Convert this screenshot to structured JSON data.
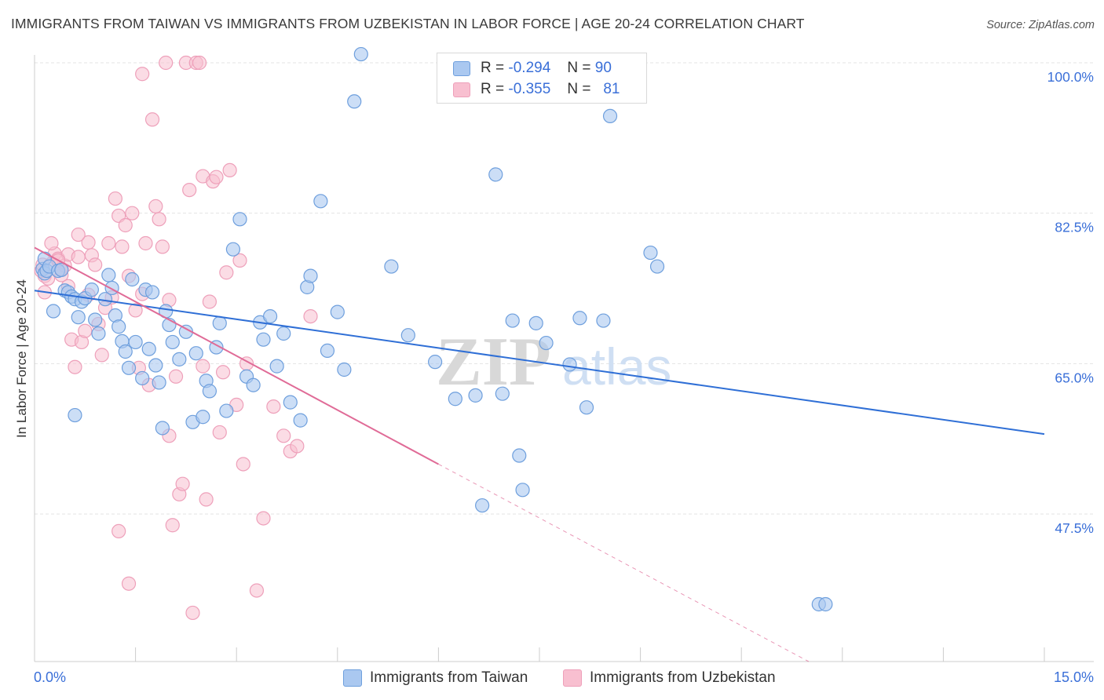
{
  "title": "IMMIGRANTS FROM TAIWAN VS IMMIGRANTS FROM UZBEKISTAN IN LABOR FORCE | AGE 20-24 CORRELATION CHART",
  "source": "Source: ZipAtlas.com",
  "watermark": {
    "zip": "ZIP",
    "atlas": "atlas"
  },
  "legend": {
    "taiwan": {
      "r_label": "R =",
      "r_value": "-0.294",
      "n_label": "N =",
      "n_value": "90"
    },
    "uzbekistan": {
      "r_label": "R =",
      "r_value": "-0.355",
      "n_label": "N =",
      "n_value": "81"
    }
  },
  "colors": {
    "taiwan_fill": "#aac8f0",
    "taiwan_stroke": "#6e9fdd",
    "taiwan_line": "#2f6fd6",
    "uzbek_fill": "#f8bfd0",
    "uzbek_stroke": "#eea0ba",
    "uzbek_line": "#e06b97",
    "axis_text": "#3a6fd8",
    "grid": "#e3e3e3"
  },
  "chart_data": {
    "type": "scatter",
    "title": "IMMIGRANTS FROM TAIWAN VS IMMIGRANTS FROM UZBEKISTAN IN LABOR FORCE | AGE 20-24 CORRELATION CHART",
    "xlabel": "",
    "ylabel": "In Labor Force | Age 20-24",
    "xlim": [
      0,
      15
    ],
    "ylim": [
      32.5,
      102
    ],
    "x_tick_labels": [
      "0.0%",
      "15.0%"
    ],
    "y_ticks": [
      47.5,
      65.0,
      82.5,
      100.0
    ],
    "y_tick_labels": [
      "47.5%",
      "65.0%",
      "82.5%",
      "100.0%"
    ],
    "grid": true,
    "legend_placement": "top-center",
    "series": [
      {
        "name": "Immigrants from Taiwan",
        "key": "taiwan",
        "points": [
          [
            0.12,
            76.0
          ],
          [
            0.15,
            77.2
          ],
          [
            0.15,
            75.5
          ],
          [
            0.18,
            75.8
          ],
          [
            0.22,
            76.3
          ],
          [
            0.28,
            71.1
          ],
          [
            0.35,
            75.8
          ],
          [
            0.4,
            75.9
          ],
          [
            0.45,
            73.5
          ],
          [
            0.5,
            73.3
          ],
          [
            0.55,
            72.8
          ],
          [
            0.6,
            72.5
          ],
          [
            0.65,
            70.4
          ],
          [
            0.7,
            72.2
          ],
          [
            0.75,
            72.6
          ],
          [
            0.85,
            73.6
          ],
          [
            0.9,
            70.1
          ],
          [
            0.95,
            68.5
          ],
          [
            1.05,
            72.5
          ],
          [
            1.1,
            75.3
          ],
          [
            1.15,
            73.8
          ],
          [
            1.2,
            70.6
          ],
          [
            1.25,
            69.3
          ],
          [
            1.3,
            67.6
          ],
          [
            1.35,
            66.4
          ],
          [
            1.4,
            64.5
          ],
          [
            1.45,
            74.8
          ],
          [
            1.5,
            67.5
          ],
          [
            1.6,
            63.3
          ],
          [
            1.65,
            73.6
          ],
          [
            1.7,
            66.7
          ],
          [
            1.75,
            73.3
          ],
          [
            1.8,
            64.8
          ],
          [
            1.85,
            62.8
          ],
          [
            1.9,
            57.5
          ],
          [
            1.95,
            71.1
          ],
          [
            2.0,
            69.5
          ],
          [
            2.05,
            67.5
          ],
          [
            2.15,
            65.5
          ],
          [
            2.25,
            68.7
          ],
          [
            2.35,
            58.2
          ],
          [
            2.4,
            66.2
          ],
          [
            2.5,
            58.8
          ],
          [
            2.55,
            63.0
          ],
          [
            2.6,
            61.8
          ],
          [
            2.7,
            66.9
          ],
          [
            2.75,
            69.7
          ],
          [
            2.85,
            59.5
          ],
          [
            2.95,
            78.3
          ],
          [
            3.05,
            81.8
          ],
          [
            3.15,
            63.5
          ],
          [
            3.25,
            62.5
          ],
          [
            3.35,
            69.8
          ],
          [
            3.4,
            67.8
          ],
          [
            3.5,
            70.5
          ],
          [
            3.6,
            64.7
          ],
          [
            3.7,
            68.5
          ],
          [
            3.8,
            60.5
          ],
          [
            3.95,
            58.4
          ],
          [
            4.05,
            73.9
          ],
          [
            4.1,
            75.2
          ],
          [
            4.25,
            83.9
          ],
          [
            4.35,
            66.5
          ],
          [
            4.5,
            71.0
          ],
          [
            4.6,
            64.3
          ],
          [
            4.75,
            95.5
          ],
          [
            4.85,
            101.0
          ],
          [
            5.3,
            76.3
          ],
          [
            5.55,
            68.3
          ],
          [
            5.95,
            65.2
          ],
          [
            6.25,
            60.9
          ],
          [
            6.55,
            61.3
          ],
          [
            6.65,
            48.5
          ],
          [
            6.85,
            87.0
          ],
          [
            6.95,
            61.5
          ],
          [
            7.1,
            70.0
          ],
          [
            7.2,
            54.3
          ],
          [
            7.25,
            50.3
          ],
          [
            7.45,
            69.7
          ],
          [
            7.6,
            67.4
          ],
          [
            7.95,
            64.9
          ],
          [
            8.1,
            70.3
          ],
          [
            8.2,
            59.9
          ],
          [
            8.45,
            70.0
          ],
          [
            8.55,
            93.8
          ],
          [
            9.15,
            77.9
          ],
          [
            9.25,
            76.3
          ],
          [
            11.65,
            37.0
          ],
          [
            11.75,
            37.0
          ],
          [
            0.6,
            59.0
          ]
        ],
        "trend": [
          [
            0.0,
            73.5
          ],
          [
            15.0,
            56.8
          ]
        ]
      },
      {
        "name": "Immigrants from Uzbekistan",
        "key": "uzbekistan",
        "points": [
          [
            0.1,
            75.8
          ],
          [
            0.12,
            76.5
          ],
          [
            0.15,
            75.2
          ],
          [
            0.2,
            74.9
          ],
          [
            0.25,
            76.6
          ],
          [
            0.3,
            77.8
          ],
          [
            0.35,
            77.2
          ],
          [
            0.4,
            75.3
          ],
          [
            0.45,
            76.4
          ],
          [
            0.5,
            77.7
          ],
          [
            0.55,
            67.8
          ],
          [
            0.6,
            64.6
          ],
          [
            0.65,
            77.4
          ],
          [
            0.7,
            67.5
          ],
          [
            0.75,
            68.8
          ],
          [
            0.8,
            79.1
          ],
          [
            0.85,
            77.6
          ],
          [
            0.9,
            76.5
          ],
          [
            0.95,
            69.6
          ],
          [
            1.0,
            66.0
          ],
          [
            1.05,
            71.5
          ],
          [
            1.1,
            79.0
          ],
          [
            1.15,
            72.7
          ],
          [
            1.2,
            84.2
          ],
          [
            1.25,
            82.2
          ],
          [
            1.3,
            78.6
          ],
          [
            1.35,
            81.1
          ],
          [
            1.4,
            75.2
          ],
          [
            1.45,
            82.5
          ],
          [
            1.5,
            71.2
          ],
          [
            1.55,
            64.5
          ],
          [
            1.6,
            98.7
          ],
          [
            1.65,
            79.0
          ],
          [
            1.7,
            62.5
          ],
          [
            1.75,
            93.4
          ],
          [
            1.8,
            83.3
          ],
          [
            1.85,
            81.8
          ],
          [
            1.9,
            78.6
          ],
          [
            1.95,
            100.0
          ],
          [
            2.0,
            56.6
          ],
          [
            2.05,
            46.2
          ],
          [
            2.1,
            63.5
          ],
          [
            2.15,
            49.8
          ],
          [
            2.2,
            51.0
          ],
          [
            2.25,
            100.0
          ],
          [
            2.3,
            85.2
          ],
          [
            2.35,
            36.0
          ],
          [
            2.4,
            100.0
          ],
          [
            2.45,
            100.0
          ],
          [
            2.5,
            86.8
          ],
          [
            2.55,
            49.2
          ],
          [
            2.6,
            72.2
          ],
          [
            2.65,
            86.2
          ],
          [
            2.7,
            86.7
          ],
          [
            2.75,
            57.0
          ],
          [
            2.8,
            64.0
          ],
          [
            2.85,
            75.6
          ],
          [
            2.9,
            87.5
          ],
          [
            3.0,
            60.2
          ],
          [
            3.05,
            77.0
          ],
          [
            3.1,
            53.3
          ],
          [
            3.15,
            65.0
          ],
          [
            3.3,
            38.6
          ],
          [
            3.4,
            47.0
          ],
          [
            3.55,
            60.0
          ],
          [
            3.7,
            56.6
          ],
          [
            3.8,
            54.8
          ],
          [
            3.9,
            55.4
          ],
          [
            4.1,
            70.5
          ],
          [
            0.25,
            79.0
          ],
          [
            0.4,
            76.0
          ],
          [
            0.5,
            74.0
          ],
          [
            0.65,
            80.0
          ],
          [
            0.8,
            73.0
          ],
          [
            1.25,
            45.5
          ],
          [
            1.4,
            39.4
          ],
          [
            1.6,
            73.1
          ],
          [
            2.0,
            72.4
          ],
          [
            2.5,
            64.7
          ],
          [
            0.15,
            73.3
          ],
          [
            0.35,
            77.0
          ]
        ],
        "trend_solid": [
          [
            0.0,
            78.5
          ],
          [
            6.0,
            53.3
          ]
        ],
        "trend_dashed": [
          [
            6.0,
            53.3
          ],
          [
            11.5,
            30.0
          ]
        ]
      }
    ]
  },
  "bottom_legend": {
    "taiwan": "Immigrants from Taiwan",
    "uzbekistan": "Immigrants from Uzbekistan"
  }
}
